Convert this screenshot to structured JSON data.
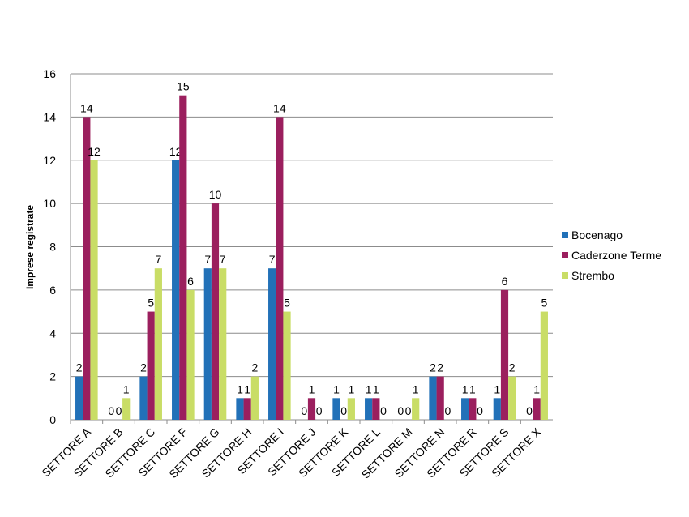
{
  "chart_data": {
    "type": "bar",
    "title": "",
    "xlabel": "",
    "ylabel": "Imprese registrate",
    "ylim": [
      0,
      16
    ],
    "yticks": [
      0,
      2,
      4,
      6,
      8,
      10,
      12,
      14,
      16
    ],
    "grid": true,
    "legend_position": "right",
    "categories": [
      "SETTORE A",
      "SETTORE B",
      "SETTORE C",
      "SETTORE F",
      "SETTORE G",
      "SETTORE H",
      "SETTORE I",
      "SETTORE J",
      "SETTORE K",
      "SETTORE L",
      "SETTORE M",
      "SETTORE N",
      "SETTORE R",
      "SETTORE S",
      "SETTORE X"
    ],
    "series": [
      {
        "name": "Bocenago",
        "color": "#2271B8",
        "values": [
          2,
          0,
          2,
          12,
          7,
          1,
          7,
          0,
          1,
          1,
          0,
          2,
          1,
          1,
          0
        ]
      },
      {
        "name": "Caderzone Terme",
        "color": "#9B1F5E",
        "values": [
          14,
          0,
          5,
          15,
          10,
          1,
          14,
          1,
          0,
          1,
          0,
          2,
          1,
          6,
          1
        ]
      },
      {
        "name": "Strembo",
        "color": "#C9DD66",
        "values": [
          12,
          1,
          7,
          6,
          7,
          2,
          5,
          0,
          1,
          0,
          1,
          0,
          0,
          2,
          5
        ]
      }
    ]
  }
}
